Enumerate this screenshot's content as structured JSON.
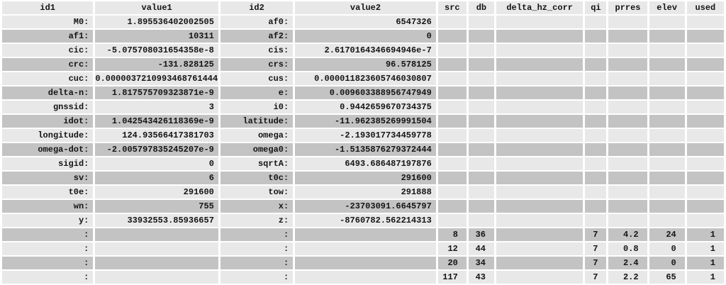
{
  "colors": {
    "background": "#ffffff",
    "row_light": "#e8e8e8",
    "row_dark": "#c3c3c3",
    "text": "#141414"
  },
  "table": {
    "columns": [
      "id1",
      "value1",
      "id2",
      "value2",
      "src",
      "db",
      "delta_hz_corr",
      "qi",
      "prres",
      "elev",
      "used"
    ],
    "rows": [
      [
        "M0:",
        "1.895536402002505",
        "af0:",
        "6547326",
        "",
        "",
        "",
        "",
        "",
        "",
        ""
      ],
      [
        "af1:",
        "10311",
        "af2:",
        "0",
        "",
        "",
        "",
        "",
        "",
        "",
        ""
      ],
      [
        "cic:",
        "-5.075708031654358e-8",
        "cis:",
        "2.6170164346694946e-7",
        "",
        "",
        "",
        "",
        "",
        "",
        ""
      ],
      [
        "crc:",
        "-131.828125",
        "crs:",
        "96.578125",
        "",
        "",
        "",
        "",
        "",
        "",
        ""
      ],
      [
        "cuc:",
        "0.0000037210993468761444",
        "cus:",
        "0.000011823605746030807",
        "",
        "",
        "",
        "",
        "",
        "",
        ""
      ],
      [
        "delta-n:",
        "1.817575709323871e-9",
        "e:",
        "0.009603388956747949",
        "",
        "",
        "",
        "",
        "",
        "",
        ""
      ],
      [
        "gnssid:",
        "3",
        "i0:",
        "0.9442659670734375",
        "",
        "",
        "",
        "",
        "",
        "",
        ""
      ],
      [
        "idot:",
        "1.042543426118369e-9",
        "latitude:",
        "-11.962385269991504",
        "",
        "",
        "",
        "",
        "",
        "",
        ""
      ],
      [
        "longitude:",
        "124.93566417381703",
        "omega:",
        "-2.193017734459778",
        "",
        "",
        "",
        "",
        "",
        "",
        ""
      ],
      [
        "omega-dot:",
        "-2.005797835245207e-9",
        "omega0:",
        "-1.5135876279372444",
        "",
        "",
        "",
        "",
        "",
        "",
        ""
      ],
      [
        "sigid:",
        "0",
        "sqrtA:",
        "6493.686487197876",
        "",
        "",
        "",
        "",
        "",
        "",
        ""
      ],
      [
        "sv:",
        "6",
        "t0c:",
        "291600",
        "",
        "",
        "",
        "",
        "",
        "",
        ""
      ],
      [
        "t0e:",
        "291600",
        "tow:",
        "291888",
        "",
        "",
        "",
        "",
        "",
        "",
        ""
      ],
      [
        "wn:",
        "755",
        "x:",
        "-23703091.6645797",
        "",
        "",
        "",
        "",
        "",
        "",
        ""
      ],
      [
        "y:",
        "33932553.85936657",
        "z:",
        "-8760782.562214313",
        "",
        "",
        "",
        "",
        "",
        "",
        ""
      ],
      [
        ":",
        "",
        ":",
        "",
        "8",
        "36",
        "",
        "7",
        "4.2",
        "24",
        "1"
      ],
      [
        ":",
        "",
        ":",
        "",
        "12",
        "44",
        "",
        "7",
        "0.8",
        "0",
        "1"
      ],
      [
        ":",
        "",
        ":",
        "",
        "20",
        "34",
        "",
        "7",
        "2.4",
        "0",
        "1"
      ],
      [
        ":",
        "",
        ":",
        "",
        "117",
        "43",
        "",
        "7",
        "2.2",
        "65",
        "1"
      ]
    ]
  }
}
